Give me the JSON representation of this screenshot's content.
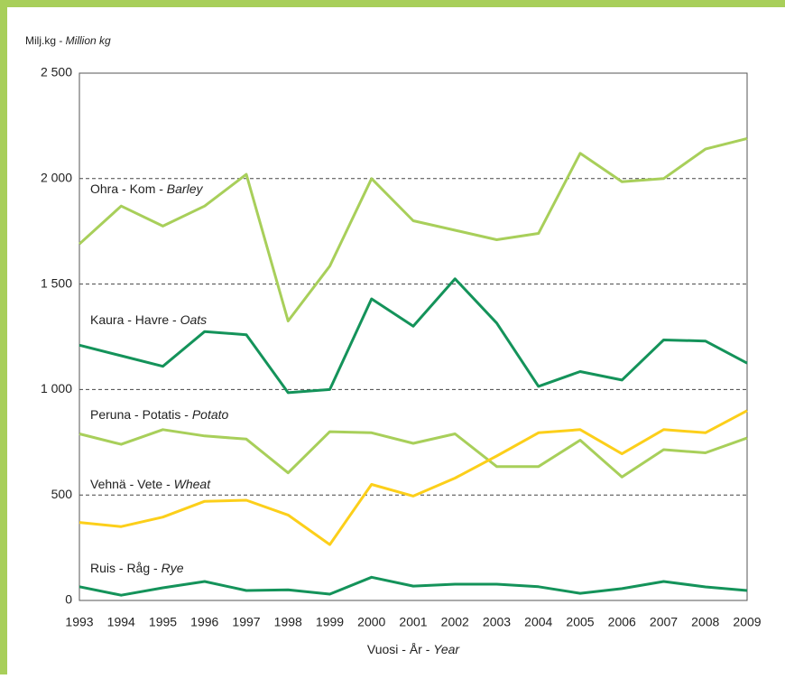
{
  "chart_data": {
    "type": "line",
    "y_axis_label": "Milj.kg - Million kg",
    "x_axis_label": "Vuosi - År - Year",
    "x": [
      1993,
      1994,
      1995,
      1996,
      1997,
      1998,
      1999,
      2000,
      2001,
      2002,
      2003,
      2004,
      2005,
      2006,
      2007,
      2008,
      2009
    ],
    "xlim": [
      1993,
      2009
    ],
    "xticks": [
      1993,
      1994,
      1995,
      1996,
      1997,
      1998,
      1999,
      2000,
      2001,
      2002,
      2003,
      2004,
      2005,
      2006,
      2007,
      2008,
      2009
    ],
    "ylim": [
      0,
      2500
    ],
    "yticks": [
      0,
      500,
      {
        "value": 1000,
        "label": "1 000"
      },
      {
        "value": 1500,
        "label": "1 500"
      },
      {
        "value": 2000,
        "label": "2 000"
      },
      {
        "value": 2500,
        "label": "2 500"
      }
    ],
    "grid": true,
    "series": [
      {
        "name": "Ohra - Kom - Barley",
        "color": "#a8cf5a",
        "values": [
          1690,
          1870,
          1775,
          1870,
          2020,
          1325,
          1585,
          2000,
          1800,
          1755,
          1710,
          1740,
          2120,
          1985,
          2000,
          2140,
          2190
        ]
      },
      {
        "name": "Kaura - Havre - Oats",
        "color": "#14935a",
        "values": [
          1210,
          1160,
          1110,
          1275,
          1260,
          985,
          1000,
          1430,
          1300,
          1525,
          1315,
          1015,
          1085,
          1045,
          1235,
          1230,
          1125
        ]
      },
      {
        "name": "Peruna - Potatis - Potato",
        "color": "#a8cf5a",
        "values": [
          790,
          740,
          810,
          780,
          765,
          605,
          800,
          795,
          745,
          790,
          635,
          635,
          760,
          585,
          715,
          700,
          770
        ]
      },
      {
        "name": "Vehnä - Vete - Wheat",
        "color": "#fccf1a",
        "values": [
          370,
          350,
          395,
          470,
          475,
          405,
          265,
          550,
          495,
          580,
          685,
          795,
          810,
          695,
          810,
          795,
          900
        ]
      },
      {
        "name": "Ruis - Råg - Rye",
        "color": "#14935a",
        "values": [
          65,
          25,
          60,
          90,
          47,
          50,
          30,
          110,
          68,
          77,
          77,
          65,
          34,
          56,
          90,
          64,
          47
        ]
      }
    ]
  }
}
